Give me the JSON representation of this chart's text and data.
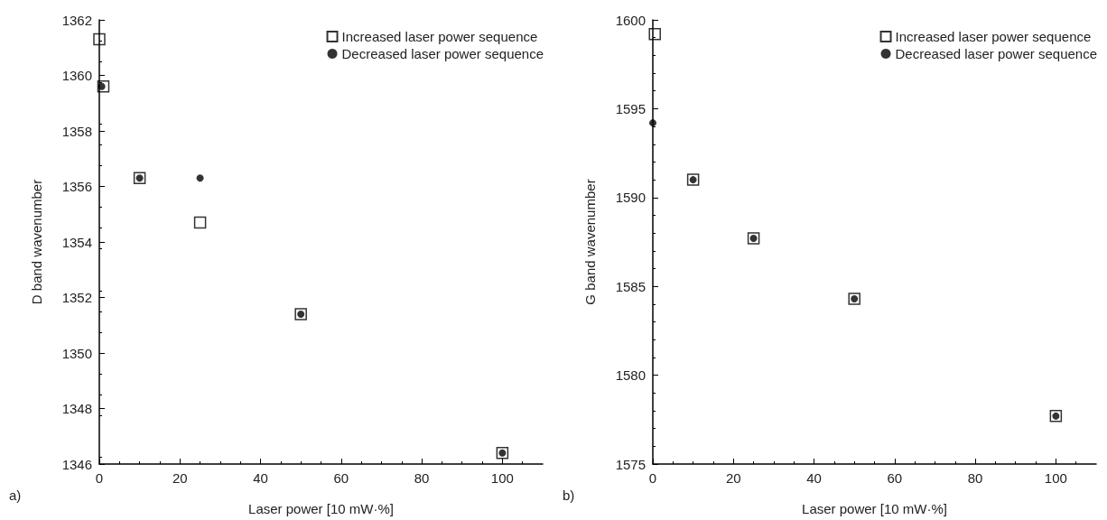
{
  "chart_data": [
    {
      "type": "scatter",
      "xlabel": "Laser power [10 mW·%]",
      "ylabel": "D band wavenumber",
      "annotations": [
        "a)"
      ],
      "xlim": [
        0,
        110
      ],
      "xticks": [
        0,
        20,
        40,
        60,
        80,
        100
      ],
      "ylim": [
        1346,
        1362
      ],
      "yticks": [
        1346,
        1348,
        1350,
        1352,
        1354,
        1356,
        1358,
        1360,
        1362
      ],
      "grid": false,
      "legend": "top right",
      "series": [
        {
          "name": "Increased laser power sequence",
          "color": "#000000",
          "marker": "square",
          "x": [
            0,
            1,
            10,
            25,
            50,
            100
          ],
          "values": [
            1361.3,
            1359.6,
            1356.3,
            1354.7,
            1351.4,
            1346.4
          ]
        },
        {
          "name": "Decreased laser power sequence",
          "color": "#000000",
          "marker": "circle",
          "x": [
            0.6,
            10,
            25,
            50,
            100
          ],
          "values": [
            1359.6,
            1356.3,
            1356.3,
            1351.4,
            1346.4
          ]
        }
      ]
    },
    {
      "type": "scatter",
      "xlabel": "Laser power [10 mW·%]",
      "ylabel": "G band wavenumber",
      "annotations": [
        "b)"
      ],
      "xlim": [
        0,
        110
      ],
      "xticks": [
        0,
        20,
        40,
        60,
        80,
        100
      ],
      "ylim": [
        1575,
        1600
      ],
      "yticks": [
        1575,
        1580,
        1585,
        1590,
        1595,
        1600
      ],
      "grid": false,
      "legend": "top right",
      "series": [
        {
          "name": "Increased laser power sequence",
          "color": "#000000",
          "marker": "square",
          "x": [
            0.5,
            10,
            25,
            50,
            100
          ],
          "values": [
            1599.2,
            1591,
            1587.7,
            1584.3,
            1577.7
          ]
        },
        {
          "name": "Decreased laser power sequence",
          "color": "#000000",
          "marker": "circle",
          "x": [
            0,
            10,
            25,
            50,
            100
          ],
          "values": [
            1594.2,
            1591,
            1587.7,
            1584.3,
            1577.7
          ]
        }
      ]
    }
  ]
}
